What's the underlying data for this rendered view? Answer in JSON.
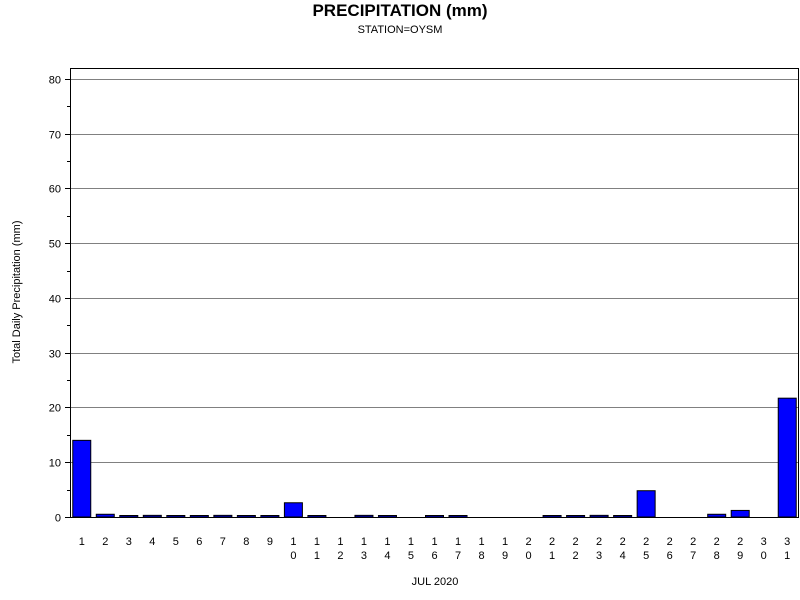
{
  "colors": {
    "bar_fill": "#0000ff",
    "bar_stroke": "#000000",
    "grid": "#808080"
  },
  "chart_data": {
    "type": "bar",
    "title": "PRECIPITATION (mm)",
    "subtitle": "STATION=OYSM",
    "xlabel": "JUL 2020",
    "ylabel": "Total Daily Precipitation (mm)",
    "ylim": [
      0,
      82
    ],
    "yticks": [
      0,
      10,
      20,
      30,
      40,
      50,
      60,
      70,
      80
    ],
    "grid": true,
    "categories": [
      "1",
      "2",
      "3",
      "4",
      "5",
      "6",
      "7",
      "8",
      "9",
      "10",
      "11",
      "12",
      "13",
      "14",
      "15",
      "16",
      "17",
      "18",
      "19",
      "20",
      "21",
      "22",
      "23",
      "24",
      "25",
      "26",
      "27",
      "28",
      "29",
      "30",
      "31"
    ],
    "values": [
      14.0,
      0.5,
      0.1,
      0.3,
      0.1,
      0.1,
      0.3,
      0.1,
      0.1,
      2.6,
      0.1,
      0,
      0.3,
      0.1,
      0,
      0.1,
      0.1,
      0,
      0,
      0,
      0.1,
      0.1,
      0.3,
      0.1,
      4.8,
      0,
      0,
      0.5,
      1.2,
      0,
      21.7
    ]
  }
}
